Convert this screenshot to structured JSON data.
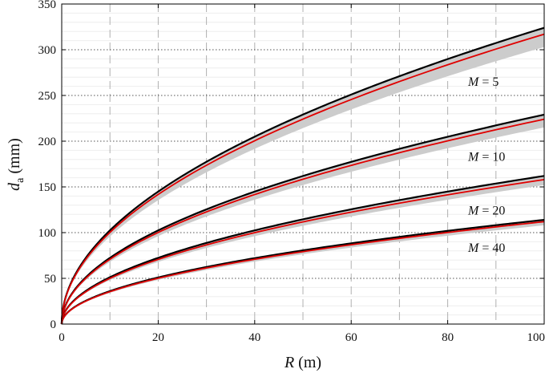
{
  "chart_data": {
    "type": "line",
    "title": "",
    "xlabel": {
      "var": "R",
      "unit": " (m)"
    },
    "ylabel": {
      "var": "d",
      "sub": "a",
      "unit": " (mm)"
    },
    "xlim": [
      0,
      100
    ],
    "ylim": [
      0,
      350
    ],
    "xticks": [
      0,
      20,
      40,
      60,
      80,
      100
    ],
    "yticks": [
      0,
      50,
      100,
      150,
      200,
      250,
      300,
      350
    ],
    "x_dashed_grid": [
      10,
      20,
      30,
      40,
      50,
      60,
      70,
      80,
      90
    ],
    "y_dotted_grid": [
      50,
      100,
      150,
      200,
      250,
      300
    ],
    "y_minor_grid_step": 10,
    "grid": true,
    "colors": {
      "upper": "#000000",
      "central": "#e00000",
      "band": "#cccccc",
      "grid_dash": "#b0b0b0",
      "grid_dot": "#555555",
      "grid_minor": "#eeeeee"
    },
    "series": [
      {
        "label_var": "M",
        "label_text": " = 5",
        "upper_at_100": 324,
        "central_at_100": 317,
        "band_low_at_100": 303
      },
      {
        "label_var": "M",
        "label_text": " = 10",
        "upper_at_100": 229,
        "central_at_100": 224,
        "band_low_at_100": 215
      },
      {
        "label_var": "M",
        "label_text": " = 20",
        "upper_at_100": 162,
        "central_at_100": 158,
        "band_low_at_100": 152
      },
      {
        "label_var": "M",
        "label_text": " = 40",
        "upper_at_100": 114,
        "central_at_100": 112,
        "band_low_at_100": 108
      }
    ]
  }
}
